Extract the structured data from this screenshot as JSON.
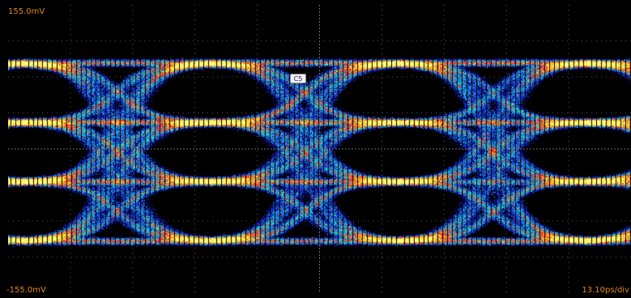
{
  "scope": {
    "vertical_top_label": "155.0mV",
    "vertical_bottom_label": "-155.0mV",
    "timebase_label": "13.10ps/div",
    "channel_marker": "C5",
    "colors": {
      "background": "#000000",
      "label": "#e08a12",
      "grid": "#6e6e6e",
      "persistence": [
        "#0a0a80",
        "#1a3cd8",
        "#18c8d8",
        "#ff2a2a",
        "#ffd21a",
        "#ffff80"
      ]
    },
    "display_mode": "color persistence eye diagram",
    "signal_levels": 4
  }
}
